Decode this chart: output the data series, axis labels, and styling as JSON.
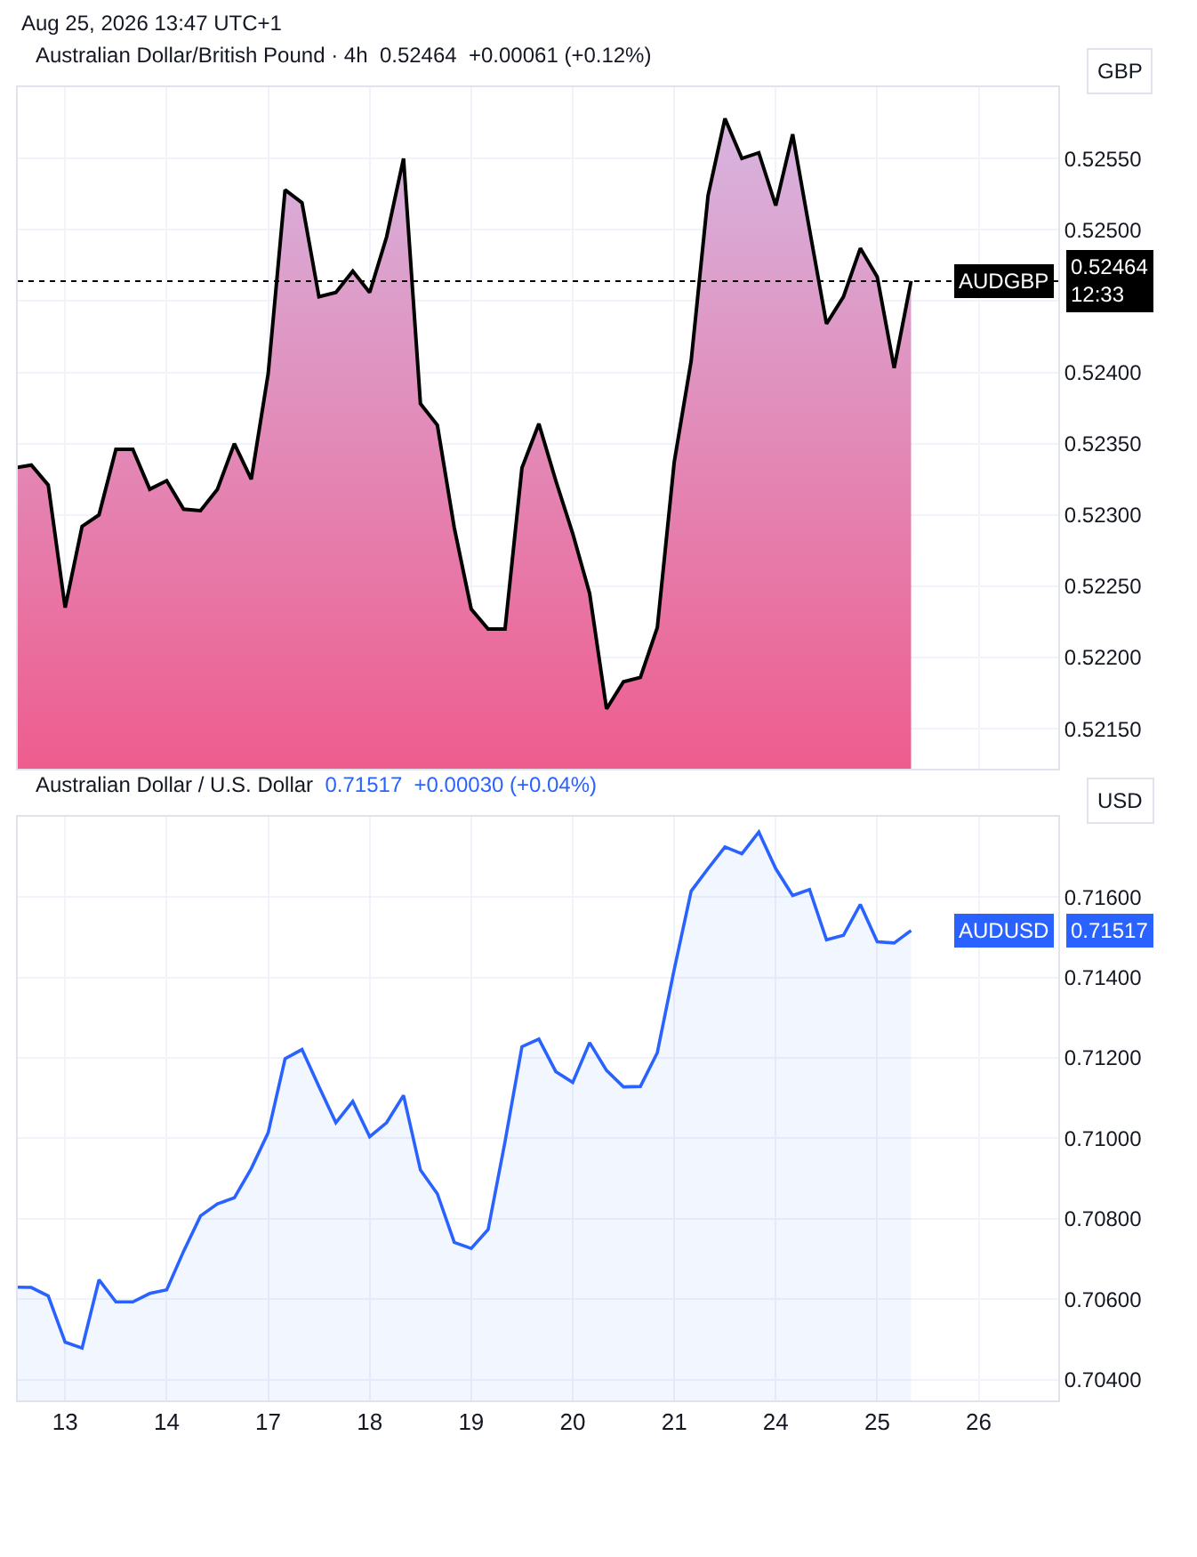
{
  "chart_data": [
    {
      "type": "area",
      "title": "Australian Dollar/British Pound · 4h",
      "subtitle": "0.52464  +0.00061 (+0.12%)",
      "ylabel": "GBP",
      "categories": [
        null,
        null,
        null,
        "13",
        null,
        null,
        null,
        null,
        null,
        "14",
        null,
        null,
        null,
        null,
        null,
        "17",
        null,
        null,
        null,
        null,
        null,
        "18",
        null,
        null,
        null,
        null,
        null,
        "19",
        null,
        null,
        null,
        null,
        null,
        "20",
        null,
        null,
        null,
        null,
        null,
        "21",
        null,
        null,
        null,
        null,
        null,
        "24",
        null,
        null,
        null,
        null,
        null,
        "25",
        null,
        null,
        null,
        null,
        null,
        "26",
        null,
        null,
        null,
        null
      ],
      "series": [
        {
          "color": "#000000",
          "values": [
            0.52333,
            0.52335,
            0.52321,
            0.52235,
            0.52292,
            0.523,
            0.52346,
            0.52346,
            0.52318,
            0.52324,
            0.52304,
            0.52303,
            0.52318,
            0.5235,
            0.52325,
            0.52399,
            0.52528,
            0.52519,
            0.52453,
            0.52456,
            0.52471,
            0.52456,
            0.52495,
            0.5255,
            0.52378,
            0.52363,
            0.52291,
            0.52234,
            0.5222,
            0.5222,
            0.52333,
            0.52364,
            0.52324,
            0.52287,
            0.52245,
            0.52164,
            0.52183,
            0.52186,
            0.52221,
            0.52337,
            0.52408,
            0.52524,
            0.52578,
            0.5255,
            0.52554,
            0.52517,
            0.52567,
            0.525,
            0.52434,
            0.52453,
            0.52487,
            0.52467,
            0.52403,
            0.52464,
            null,
            null,
            null,
            null,
            null,
            null,
            null,
            null
          ]
        }
      ],
      "ylim": [
        0.52122,
        0.526
      ],
      "yticks": [
        {
          "value": 0.5215,
          "label": "0.52150"
        },
        {
          "value": 0.522,
          "label": "0.52200"
        },
        {
          "value": 0.5225,
          "label": "0.52250"
        },
        {
          "value": 0.523,
          "label": "0.52300"
        },
        {
          "value": 0.5235,
          "label": "0.52350"
        },
        {
          "value": 0.524,
          "label": "0.52400"
        },
        {
          "value": 0.5245,
          "label": null
        },
        {
          "value": 0.525,
          "label": "0.52500"
        },
        {
          "value": 0.5255,
          "label": "0.52550"
        }
      ],
      "tick_labels": "y",
      "grid": true,
      "ref_lines": [
        {
          "axis": "y",
          "value": 0.52464,
          "label": "AUDGBP",
          "line_style": "dotted",
          "color": "#000000"
        }
      ],
      "annotations": [
        "Aug 25, 2026 13:47 UTC+1",
        "0.52464\n12:33"
      ]
    },
    {
      "type": "area",
      "title": "Australian Dollar / U.S. Dollar",
      "subtitle": "0.71517  +0.00030 (+0.04%)",
      "ylabel": "USD",
      "categories": [
        null,
        null,
        null,
        "13",
        null,
        null,
        null,
        null,
        null,
        "14",
        null,
        null,
        null,
        null,
        null,
        "17",
        null,
        null,
        null,
        null,
        null,
        "18",
        null,
        null,
        null,
        null,
        null,
        "19",
        null,
        null,
        null,
        null,
        null,
        "20",
        null,
        null,
        null,
        null,
        null,
        "21",
        null,
        null,
        null,
        null,
        null,
        "24",
        null,
        null,
        null,
        null,
        null,
        "25",
        null,
        null,
        null,
        null,
        null,
        "26",
        null,
        null,
        null,
        null
      ],
      "series": [
        {
          "color": "#2962ff",
          "values": [
            0.7063,
            0.70629,
            0.70608,
            0.70493,
            0.70478,
            0.70648,
            0.70593,
            0.70593,
            0.70614,
            0.70623,
            0.70719,
            0.70807,
            0.70837,
            0.70852,
            0.70925,
            0.71014,
            0.71198,
            0.71221,
            0.71129,
            0.71039,
            0.71092,
            0.71004,
            0.71039,
            0.71107,
            0.70921,
            0.70862,
            0.70741,
            0.70726,
            0.70773,
            0.70992,
            0.71228,
            0.71247,
            0.71166,
            0.71139,
            0.71238,
            0.71169,
            0.71128,
            0.71129,
            0.71213,
            0.7142,
            0.71615,
            0.71671,
            0.71725,
            0.71708,
            0.71762,
            0.71671,
            0.71604,
            0.71619,
            0.71494,
            0.71505,
            0.71582,
            0.71489,
            0.71486,
            0.71517,
            null,
            null,
            null,
            null,
            null,
            null,
            null,
            null
          ]
        }
      ],
      "ylim": [
        0.70348,
        0.718
      ],
      "yticks": [
        {
          "value": 0.704,
          "label": "0.70400"
        },
        {
          "value": 0.706,
          "label": "0.70600"
        },
        {
          "value": 0.708,
          "label": "0.70800"
        },
        {
          "value": 0.71,
          "label": "0.71000"
        },
        {
          "value": 0.712,
          "label": "0.71200"
        },
        {
          "value": 0.714,
          "label": "0.71400"
        },
        {
          "value": 0.716,
          "label": "0.71600"
        }
      ],
      "grid": true,
      "annotations": [
        "AUDUSD",
        "0.71517"
      ]
    }
  ]
}
